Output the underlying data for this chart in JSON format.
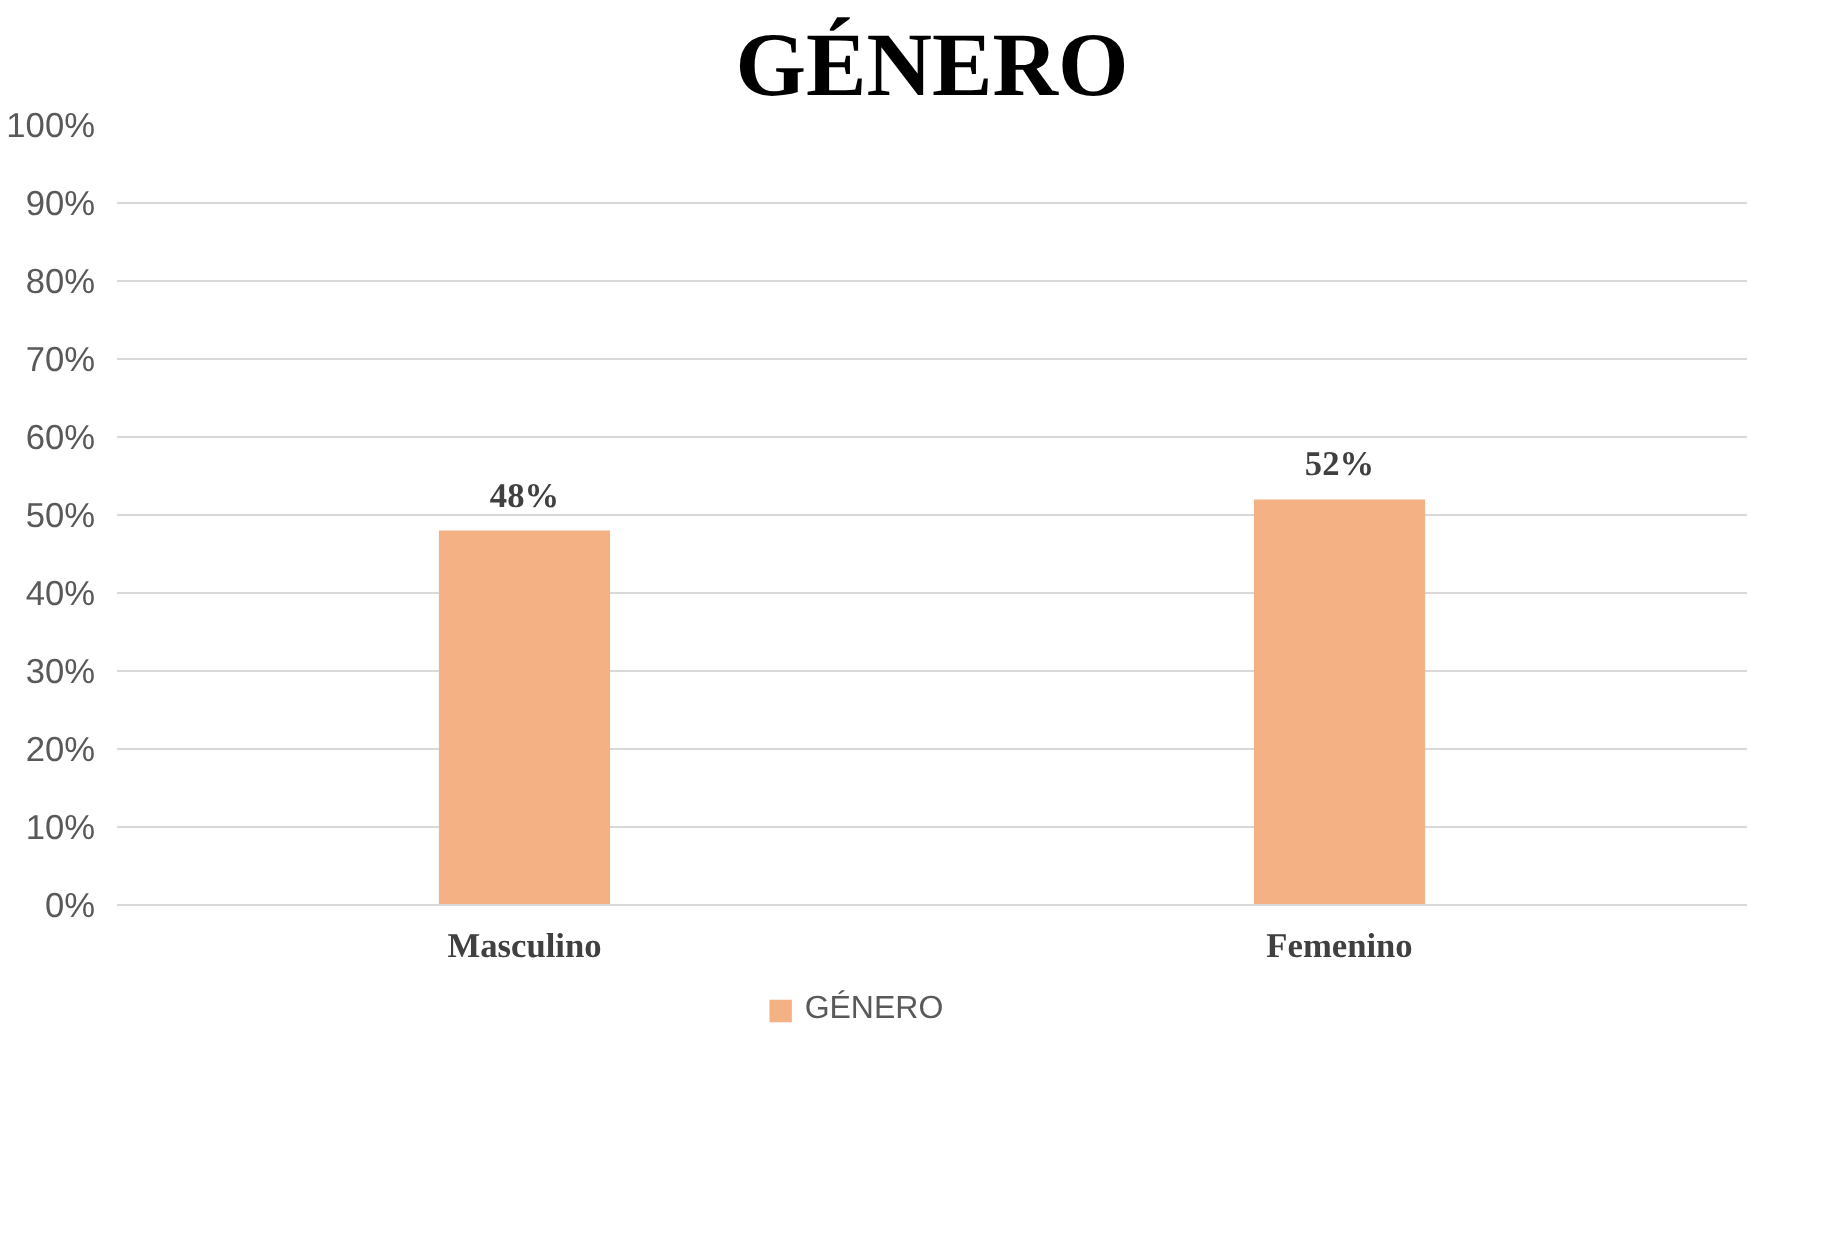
{
  "chart_data": {
    "type": "bar",
    "title": "GÉNERO",
    "categories": [
      "Masculino",
      "Femenino"
    ],
    "series": [
      {
        "name": "GÉNERO",
        "color": "#f4b183",
        "values": [
          48,
          52
        ],
        "value_labels": [
          "48%",
          "52%"
        ]
      }
    ],
    "ylim": [
      0,
      100
    ],
    "yticks": [
      {
        "value": 0,
        "label": "0%"
      },
      {
        "value": 10,
        "label": "10%"
      },
      {
        "value": 20,
        "label": "20%"
      },
      {
        "value": 30,
        "label": "30%"
      },
      {
        "value": 40,
        "label": "40%"
      },
      {
        "value": 50,
        "label": "50%"
      },
      {
        "value": 60,
        "label": "60%"
      },
      {
        "value": 70,
        "label": "70%"
      },
      {
        "value": 80,
        "label": "80%"
      },
      {
        "value": 90,
        "label": "90%"
      },
      {
        "value": 100,
        "label": "100%"
      }
    ],
    "grid": "y",
    "legend": "bottom"
  }
}
